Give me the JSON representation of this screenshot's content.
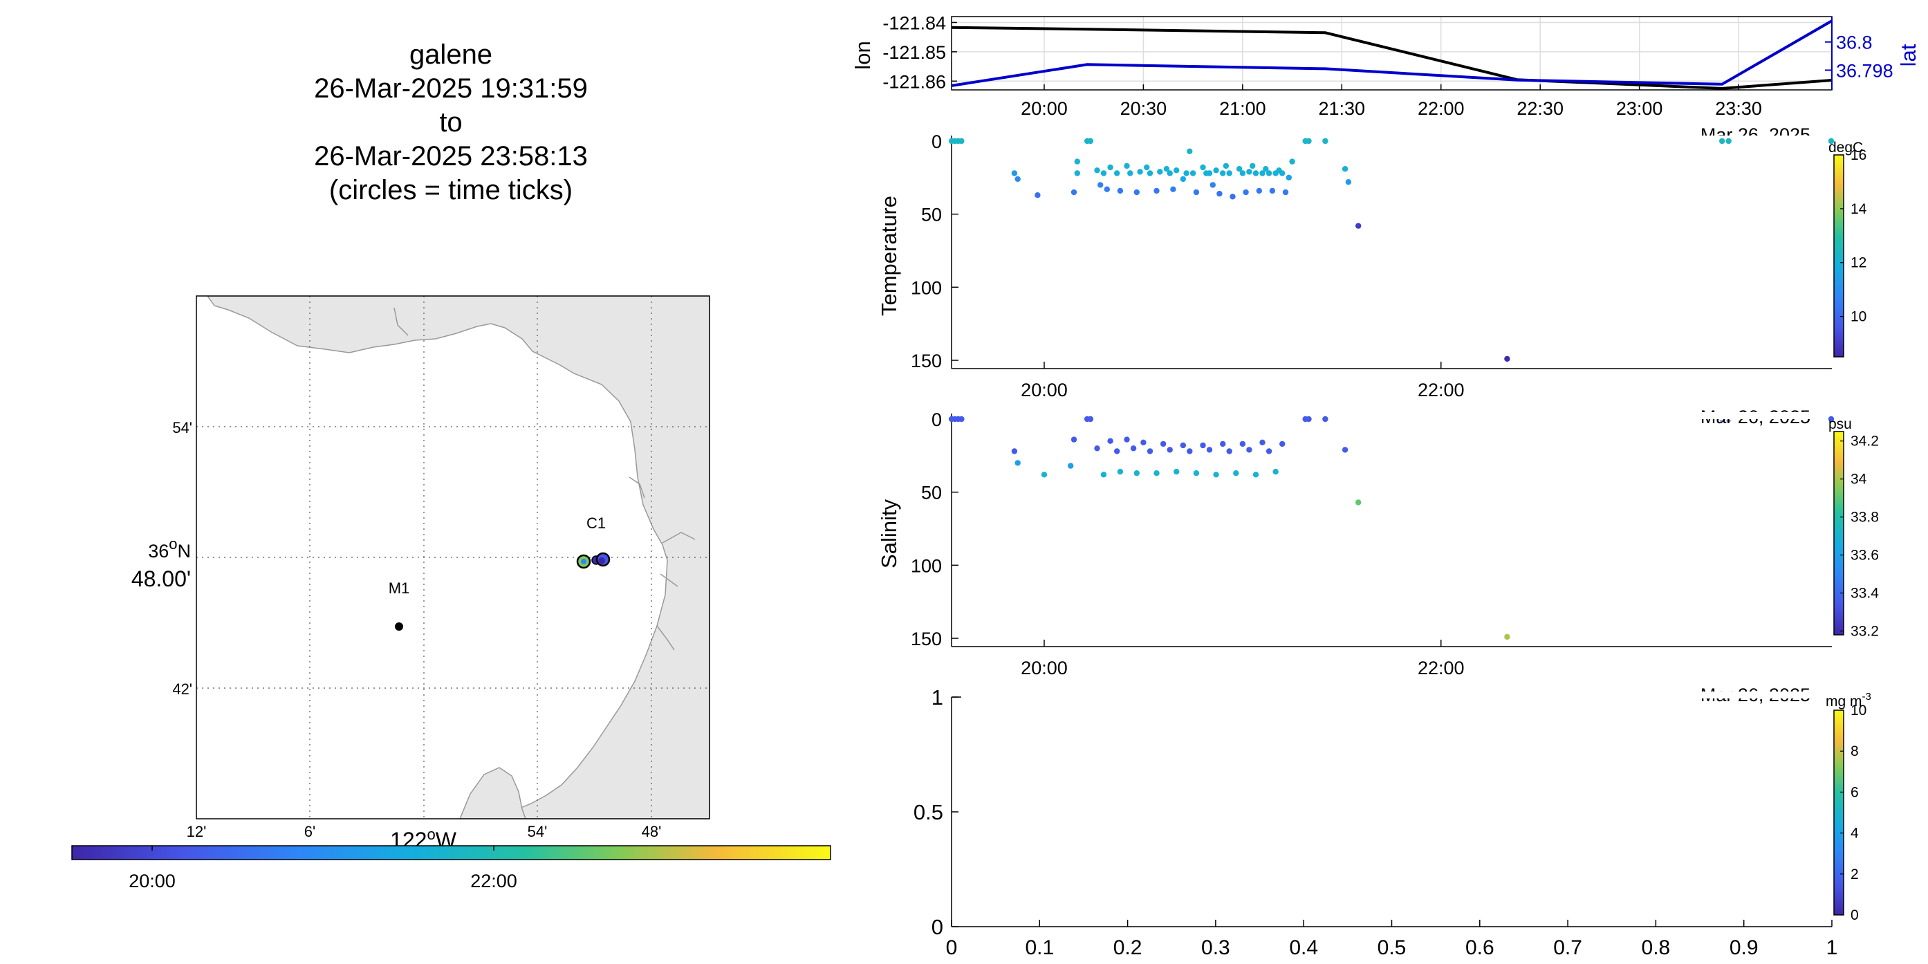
{
  "figure": {
    "title_lines": [
      "galene",
      "26-Mar-2025 19:31:59",
      "to",
      "26-Mar-2025 23:58:13",
      "(circles = time ticks)"
    ]
  },
  "map": {
    "lat_ticks": [
      "54'",
      "48.00'",
      "42'"
    ],
    "lat_degree": "36",
    "lat_degree_suffix": "N",
    "lon_ticks": [
      "12'",
      "6'",
      "54'",
      "48'"
    ],
    "lon_degree": "122",
    "lon_degree_suffix": "W",
    "stations": [
      {
        "name": "C1",
        "lon": -121.845,
        "lat": 36.797
      },
      {
        "name": "M1",
        "lon": -122.03,
        "lat": 36.75
      }
    ],
    "colorbar_ticks": [
      "20:00",
      "22:00"
    ],
    "land_color": "#e6e6e6"
  },
  "chart_data": [
    {
      "type": "line",
      "title": "",
      "xlabel": "",
      "ylabel": "lon",
      "y2label": "lat",
      "date_label": "Mar 26, 2025",
      "x_tick_labels": [
        "20:00",
        "20:30",
        "21:00",
        "21:30",
        "22:00",
        "22:30",
        "23:00",
        "23:30"
      ],
      "ylim": [
        -121.863,
        -121.838
      ],
      "y_tick_labels": [
        "-121.84",
        "-121.85",
        "-121.86"
      ],
      "y2lim": [
        36.7966,
        36.8018
      ],
      "y2_tick_labels": [
        "36.8",
        "36.798"
      ],
      "grid": true,
      "series": [
        {
          "name": "lon",
          "color": "#000000",
          "axis": "left",
          "x": [
            "19:31:59",
            "20:13",
            "21:25",
            "22:23",
            "23:25",
            "23:58:13"
          ],
          "values": [
            -121.8417,
            -121.8423,
            -121.8435,
            -121.8595,
            -121.8625,
            -121.8597
          ]
        },
        {
          "name": "lat",
          "color": "#0000cc",
          "axis": "right",
          "x": [
            "19:31:59",
            "20:13",
            "21:25",
            "22:23",
            "23:25",
            "23:58:13"
          ],
          "values": [
            36.7969,
            36.7984,
            36.7981,
            36.7973,
            36.797,
            36.8015
          ]
        }
      ]
    },
    {
      "type": "scatter",
      "ylabel": "Temperature",
      "xlabel": "",
      "date_label": "Mar 26, 2025",
      "x_tick_labels": [
        "20:00",
        "22:00"
      ],
      "y_tick_labels": [
        "0",
        "50",
        "100",
        "150"
      ],
      "ylim": [
        0,
        155
      ],
      "yreversed": true,
      "colorbar_unit": "degC",
      "colorbar_ticks": [
        "16",
        "14",
        "12",
        "10"
      ],
      "clim": [
        8.5,
        16
      ],
      "points": [
        [
          "19:32",
          0,
          12.3
        ],
        [
          "19:33",
          0,
          12.3
        ],
        [
          "19:34",
          0,
          12.3
        ],
        [
          "19:35",
          0,
          12.3
        ],
        [
          "19:51",
          22,
          11.2
        ],
        [
          "19:52",
          26,
          10.8
        ],
        [
          "19:58",
          37,
          10.2
        ],
        [
          "20:10",
          14,
          12.2
        ],
        [
          "20:10",
          22,
          12.0
        ],
        [
          "20:09",
          35,
          10.4
        ],
        [
          "20:13",
          0,
          12.3
        ],
        [
          "20:14",
          0,
          12.3
        ],
        [
          "20:16",
          20,
          12.1
        ],
        [
          "20:17",
          30,
          10.6
        ],
        [
          "20:18",
          22,
          12.0
        ],
        [
          "20:19",
          33,
          10.5
        ],
        [
          "20:20",
          18,
          12.1
        ],
        [
          "20:22",
          22,
          12.0
        ],
        [
          "20:23",
          34,
          10.4
        ],
        [
          "20:25",
          17,
          12.1
        ],
        [
          "20:26",
          22,
          12.0
        ],
        [
          "20:28",
          35,
          10.4
        ],
        [
          "20:29",
          21,
          12.0
        ],
        [
          "20:31",
          18,
          12.1
        ],
        [
          "20:32",
          22,
          12.0
        ],
        [
          "20:34",
          34,
          10.4
        ],
        [
          "20:35",
          21,
          12.0
        ],
        [
          "20:37",
          19,
          12.1
        ],
        [
          "20:38",
          22,
          12.0
        ],
        [
          "20:39",
          33,
          10.5
        ],
        [
          "20:40",
          20,
          12.0
        ],
        [
          "20:42",
          26,
          11.8
        ],
        [
          "20:43",
          22,
          12.0
        ],
        [
          "20:44",
          7,
          12.3
        ],
        [
          "20:45",
          22,
          12.0
        ],
        [
          "20:46",
          35,
          10.4
        ],
        [
          "20:48",
          18,
          12.1
        ],
        [
          "20:49",
          22,
          12.0
        ],
        [
          "20:50",
          22,
          12.0
        ],
        [
          "20:51",
          30,
          10.6
        ],
        [
          "20:52",
          20,
          12.0
        ],
        [
          "20:53",
          36,
          10.3
        ],
        [
          "20:54",
          22,
          12.0
        ],
        [
          "20:55",
          17,
          12.1
        ],
        [
          "20:56",
          22,
          12.0
        ],
        [
          "20:57",
          38,
          10.2
        ],
        [
          "20:59",
          19,
          12.1
        ],
        [
          "21:00",
          22,
          12.0
        ],
        [
          "21:01",
          35,
          10.4
        ],
        [
          "21:02",
          21,
          12.0
        ],
        [
          "21:03",
          17,
          12.1
        ],
        [
          "21:04",
          22,
          12.0
        ],
        [
          "21:05",
          34,
          10.4
        ],
        [
          "21:06",
          22,
          12.0
        ],
        [
          "21:07",
          19,
          12.1
        ],
        [
          "21:08",
          22,
          12.0
        ],
        [
          "21:09",
          34,
          10.4
        ],
        [
          "21:10",
          22,
          12.0
        ],
        [
          "21:11",
          20,
          12.1
        ],
        [
          "21:12",
          22,
          12.0
        ],
        [
          "21:13",
          35,
          10.4
        ],
        [
          "21:14",
          25,
          11.6
        ],
        [
          "21:15",
          14,
          12.2
        ],
        [
          "21:19",
          0,
          12.3
        ],
        [
          "21:20",
          0,
          12.3
        ],
        [
          "21:25",
          0,
          12.3
        ],
        [
          "21:31",
          19,
          12.0
        ],
        [
          "21:32",
          28,
          11.3
        ],
        [
          "21:35",
          58,
          9.0
        ],
        [
          "22:20",
          149,
          8.6
        ],
        [
          "23:25",
          0,
          12.3
        ],
        [
          "23:27",
          0,
          12.3
        ],
        [
          "23:58",
          0,
          12.3
        ]
      ]
    },
    {
      "type": "scatter",
      "ylabel": "Salinity",
      "xlabel": "",
      "date_label": "Mar 26, 2025",
      "x_tick_labels": [
        "20:00",
        "22:00"
      ],
      "y_tick_labels": [
        "0",
        "50",
        "100",
        "150"
      ],
      "ylim": [
        0,
        155
      ],
      "yreversed": true,
      "colorbar_unit": "psu",
      "colorbar_ticks": [
        "34.2",
        "34",
        "33.8",
        "33.6",
        "33.4",
        "33.2"
      ],
      "clim": [
        33.18,
        34.25
      ],
      "points": [
        [
          "19:32",
          0,
          33.35
        ],
        [
          "19:33",
          0,
          33.35
        ],
        [
          "19:34",
          0,
          33.35
        ],
        [
          "19:35",
          0,
          33.35
        ],
        [
          "19:51",
          22,
          33.35
        ],
        [
          "19:52",
          30,
          33.6
        ],
        [
          "20:00",
          38,
          33.7
        ],
        [
          "20:08",
          32,
          33.6
        ],
        [
          "20:09",
          14,
          33.35
        ],
        [
          "20:13",
          0,
          33.35
        ],
        [
          "20:14",
          0,
          33.35
        ],
        [
          "20:16",
          20,
          33.35
        ],
        [
          "20:18",
          38,
          33.7
        ],
        [
          "20:20",
          15,
          33.35
        ],
        [
          "20:22",
          22,
          33.35
        ],
        [
          "20:23",
          36,
          33.7
        ],
        [
          "20:25",
          14,
          33.35
        ],
        [
          "20:27",
          20,
          33.35
        ],
        [
          "20:28",
          37,
          33.7
        ],
        [
          "20:30",
          16,
          33.35
        ],
        [
          "20:32",
          22,
          33.35
        ],
        [
          "20:34",
          37,
          33.7
        ],
        [
          "20:36",
          17,
          33.35
        ],
        [
          "20:38",
          21,
          33.35
        ],
        [
          "20:40",
          36,
          33.7
        ],
        [
          "20:42",
          18,
          33.35
        ],
        [
          "20:44",
          22,
          33.35
        ],
        [
          "20:46",
          37,
          33.7
        ],
        [
          "20:48",
          18,
          33.35
        ],
        [
          "20:50",
          21,
          33.35
        ],
        [
          "20:52",
          38,
          33.7
        ],
        [
          "20:54",
          17,
          33.35
        ],
        [
          "20:56",
          22,
          33.35
        ],
        [
          "20:58",
          37,
          33.7
        ],
        [
          "21:00",
          17,
          33.35
        ],
        [
          "21:02",
          21,
          33.35
        ],
        [
          "21:04",
          38,
          33.7
        ],
        [
          "21:06",
          16,
          33.35
        ],
        [
          "21:08",
          22,
          33.35
        ],
        [
          "21:10",
          36,
          33.7
        ],
        [
          "21:12",
          17,
          33.35
        ],
        [
          "21:19",
          0,
          33.35
        ],
        [
          "21:20",
          0,
          33.35
        ],
        [
          "21:25",
          0,
          33.35
        ],
        [
          "21:31",
          21,
          33.35
        ],
        [
          "21:35",
          57,
          33.9
        ],
        [
          "22:20",
          149,
          34.0
        ],
        [
          "23:25",
          0,
          33.35
        ],
        [
          "23:27",
          0,
          33.35
        ],
        [
          "23:58",
          0,
          33.35
        ]
      ]
    },
    {
      "type": "scatter",
      "ylabel": "",
      "xlabel": "",
      "date_label": "Mar 26, 2025",
      "x_tick_labels": [
        "0",
        "0.1",
        "0.2",
        "0.3",
        "0.4",
        "0.5",
        "0.6",
        "0.7",
        "0.8",
        "0.9",
        "1"
      ],
      "y_tick_labels": [
        "1",
        "0.5",
        "0"
      ],
      "xlim": [
        0,
        1
      ],
      "ylim": [
        0,
        1
      ],
      "colorbar_unit": "mg m",
      "colorbar_unit_sup": "-3",
      "colorbar_ticks": [
        "10",
        "8",
        "6",
        "4",
        "2",
        "0"
      ],
      "clim": [
        0,
        10
      ],
      "points": []
    }
  ]
}
